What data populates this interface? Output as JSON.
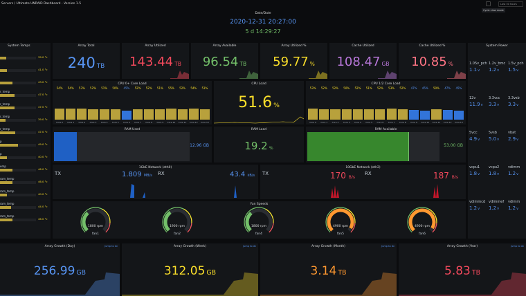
{
  "header": {
    "title": "Servers / Ultimate UNRAID Dashboard - Version 1.5",
    "tooltip": "Cycle view mode",
    "btn_label": "Last 30 hours"
  },
  "clock": {
    "title": "Date/Date",
    "datetime": "2020-12-31 20:27:00",
    "uptime": "5 d 14:29:27"
  },
  "sys_temps": {
    "title": "System Temps",
    "rows": [
      {
        "name": "",
        "value": "39.0 °c",
        "f": 0.18
      },
      {
        "name": "",
        "value": "41.0 °c",
        "f": 0.2
      },
      {
        "name": "",
        "value": "43.0 °c",
        "f": 0.35
      },
      {
        "name": "r_temp",
        "value": "47.0 °c",
        "f": 0.4
      },
      {
        "name": "r_temp",
        "value": "47.0 °c",
        "f": 0.4
      },
      {
        "name": "r_temp",
        "value": "39.0 °c",
        "f": 0.15
      },
      {
        "name": "r_temp",
        "value": "47.0 °c",
        "f": 0.42
      },
      {
        "name": "p",
        "value": "49.0 °c",
        "f": 0.5
      },
      {
        "name": "p",
        "value": "40.0 °c",
        "f": 0.2
      },
      {
        "name": "emp",
        "value": "46.0 °c",
        "f": 0.35
      },
      {
        "name": "ram_temp",
        "value": "46.0 °c",
        "f": 0.35
      },
      {
        "name": "ram_temp",
        "value": "40.0 °c",
        "f": 0.2
      },
      {
        "name": "ram_temp",
        "value": "44.0 °c",
        "f": 0.3
      },
      {
        "name": "ram_temp",
        "value": "46.0 °c",
        "f": 0.35
      }
    ]
  },
  "stats": [
    {
      "title": "Array Total",
      "value": "240",
      "unit": "TB",
      "color": "#5794f2"
    },
    {
      "title": "Array Utilized",
      "value": "143.44",
      "unit": "TB",
      "color": "#f2495c"
    },
    {
      "title": "Array Available",
      "value": "96.54",
      "unit": "TB",
      "color": "#73bf69"
    },
    {
      "title": "Array Utilized %",
      "value": "59.77",
      "unit": "%",
      "color": "#fade2a"
    },
    {
      "title": "Cache Utilized",
      "value": "108.47",
      "unit": "GB",
      "color": "#b877d9"
    },
    {
      "title": "Cache Utilized %",
      "value": "10.85",
      "unit": "%",
      "color": "#ff7383"
    }
  ],
  "system_power": {
    "title": "System Power",
    "items": [
      {
        "name": "1.05v_pch",
        "value": "1.1",
        "unit": "v"
      },
      {
        "name": "1.2v_bmc",
        "value": "1.2",
        "unit": "v"
      },
      {
        "name": "1.5v_pch",
        "value": "1.5",
        "unit": "v"
      },
      {
        "name": "12v",
        "value": "11.9",
        "unit": "v"
      },
      {
        "name": "3.3vcc",
        "value": "3.3",
        "unit": "v"
      },
      {
        "name": "3.3vsb",
        "value": "3.3",
        "unit": "v"
      },
      {
        "name": "5vcc",
        "value": "4.9",
        "unit": "v"
      },
      {
        "name": "5vsb",
        "value": "5.0",
        "unit": "v"
      },
      {
        "name": "vbat",
        "value": "2.9",
        "unit": "v"
      },
      {
        "name": "vcpu1",
        "value": "1.8",
        "unit": "v"
      },
      {
        "name": "vcpu2",
        "value": "1.8",
        "unit": "v"
      },
      {
        "name": "vdimm",
        "value": "1.2",
        "unit": "v"
      },
      {
        "name": "vdimmcd",
        "value": "1.2",
        "unit": "v"
      },
      {
        "name": "vdimmef",
        "value": "1.2",
        "unit": "v"
      },
      {
        "name": "vdimm",
        "value": "1.2",
        "unit": "v"
      }
    ]
  },
  "cpu0": {
    "title": "CPU 0+ Core Load",
    "cores": [
      {
        "pct": "54%",
        "label": "Core 0",
        "v": 54
      },
      {
        "pct": "54%",
        "label": "Core 1",
        "v": 54
      },
      {
        "pct": "53%",
        "label": "Core 2",
        "v": 53
      },
      {
        "pct": "52%",
        "label": "Core 3",
        "v": 52
      },
      {
        "pct": "51%",
        "label": "Core 4",
        "v": 51
      },
      {
        "pct": "50%",
        "label": "Core 5",
        "v": 50
      },
      {
        "pct": "45%",
        "label": "Core 6",
        "v": 45
      },
      {
        "pct": "52%",
        "label": "Core 7",
        "v": 52
      },
      {
        "pct": "52%",
        "label": "Core 8",
        "v": 52
      },
      {
        "pct": "51%",
        "label": "Core 9",
        "v": 51
      },
      {
        "pct": "55%",
        "label": "Core 10",
        "v": 55
      },
      {
        "pct": "52%",
        "label": "Core 11",
        "v": 52
      },
      {
        "pct": "54%",
        "label": "Core 12",
        "v": 54
      },
      {
        "pct": "51%",
        "label": "Core 13",
        "v": 51
      }
    ]
  },
  "cpu1": {
    "title": "CPU 1/2 Core Load",
    "cores": [
      {
        "pct": "53%",
        "label": "Core 0",
        "v": 53
      },
      {
        "pct": "52%",
        "label": "Core 1",
        "v": 52
      },
      {
        "pct": "52%",
        "label": "Core 2",
        "v": 52
      },
      {
        "pct": "50%",
        "label": "Core 3",
        "v": 50
      },
      {
        "pct": "52%",
        "label": "Core 4",
        "v": 52
      },
      {
        "pct": "51%",
        "label": "Core 5",
        "v": 51
      },
      {
        "pct": "52%",
        "label": "Core 6",
        "v": 52
      },
      {
        "pct": "53%",
        "label": "Core 7",
        "v": 53
      },
      {
        "pct": "52%",
        "label": "Core 8",
        "v": 52
      },
      {
        "pct": "47%",
        "label": "Core 9",
        "v": 47
      },
      {
        "pct": "45%",
        "label": "Core 10",
        "v": 45
      },
      {
        "pct": "50%",
        "label": "Core 11",
        "v": 50
      },
      {
        "pct": "47%",
        "label": "Core 12",
        "v": 47
      },
      {
        "pct": "45%",
        "label": "Core 13",
        "v": 45
      }
    ]
  },
  "cpu_load": {
    "title": "CPU Load",
    "value": "51.6",
    "unit": "%"
  },
  "ram_used": {
    "title": "RAM Used",
    "value": "12.96",
    "unit": "GB",
    "fraction": 0.17
  },
  "ram_load": {
    "title": "RAM Load",
    "value": "19.2",
    "unit": "%"
  },
  "ram_avail": {
    "title": "RAM Available",
    "value": "53.00",
    "unit": "GB",
    "fraction": 0.77
  },
  "net1": {
    "title": "1GbE Network (eth0)",
    "tx_label": "TX",
    "tx": "1.809",
    "tx_unit": "MB/s",
    "rx_label": "RX",
    "rx": "43.4",
    "rx_unit": "kB/s"
  },
  "net10": {
    "title": "10GbE Network (eth2)",
    "tx_label": "TX",
    "tx": "170",
    "tx_unit": "B/s",
    "rx_label": "RX",
    "rx": "187",
    "rx_unit": "B/s"
  },
  "fans": {
    "title": "Fan Speeds",
    "items": [
      {
        "name": "fan1",
        "rpm": "1800 rpm",
        "color": "#73bf69",
        "frac": 0.35
      },
      {
        "name": "fan2",
        "rpm": "1900 rpm",
        "color": "#73bf69",
        "frac": 0.37
      },
      {
        "name": "fan4",
        "rpm": "1800 rpm",
        "color": "#73bf69",
        "frac": 0.35
      },
      {
        "name": "fan5",
        "rpm": "4900 rpm",
        "color": "#ff9830",
        "frac": 0.95
      },
      {
        "name": "fan6",
        "rpm": "4900 rpm",
        "color": "#ff9830",
        "frac": 0.95
      }
    ]
  },
  "growth": [
    {
      "title": "Array Growth (Day)",
      "link": "Jump to dv",
      "value": "256.99",
      "unit": "GB",
      "color": "#5794f2"
    },
    {
      "title": "Array Growth (Week)",
      "link": "Jump to dv",
      "value": "312.05",
      "unit": "GB",
      "color": "#fade2a"
    },
    {
      "title": "Array Growth (Month)",
      "link": "Jump to dv",
      "value": "3.14",
      "unit": "TB",
      "color": "#ff9830"
    },
    {
      "title": "Array Growth (Year)",
      "link": "Jump to dv",
      "value": "5.83",
      "unit": "TB",
      "color": "#f2495c"
    }
  ]
}
